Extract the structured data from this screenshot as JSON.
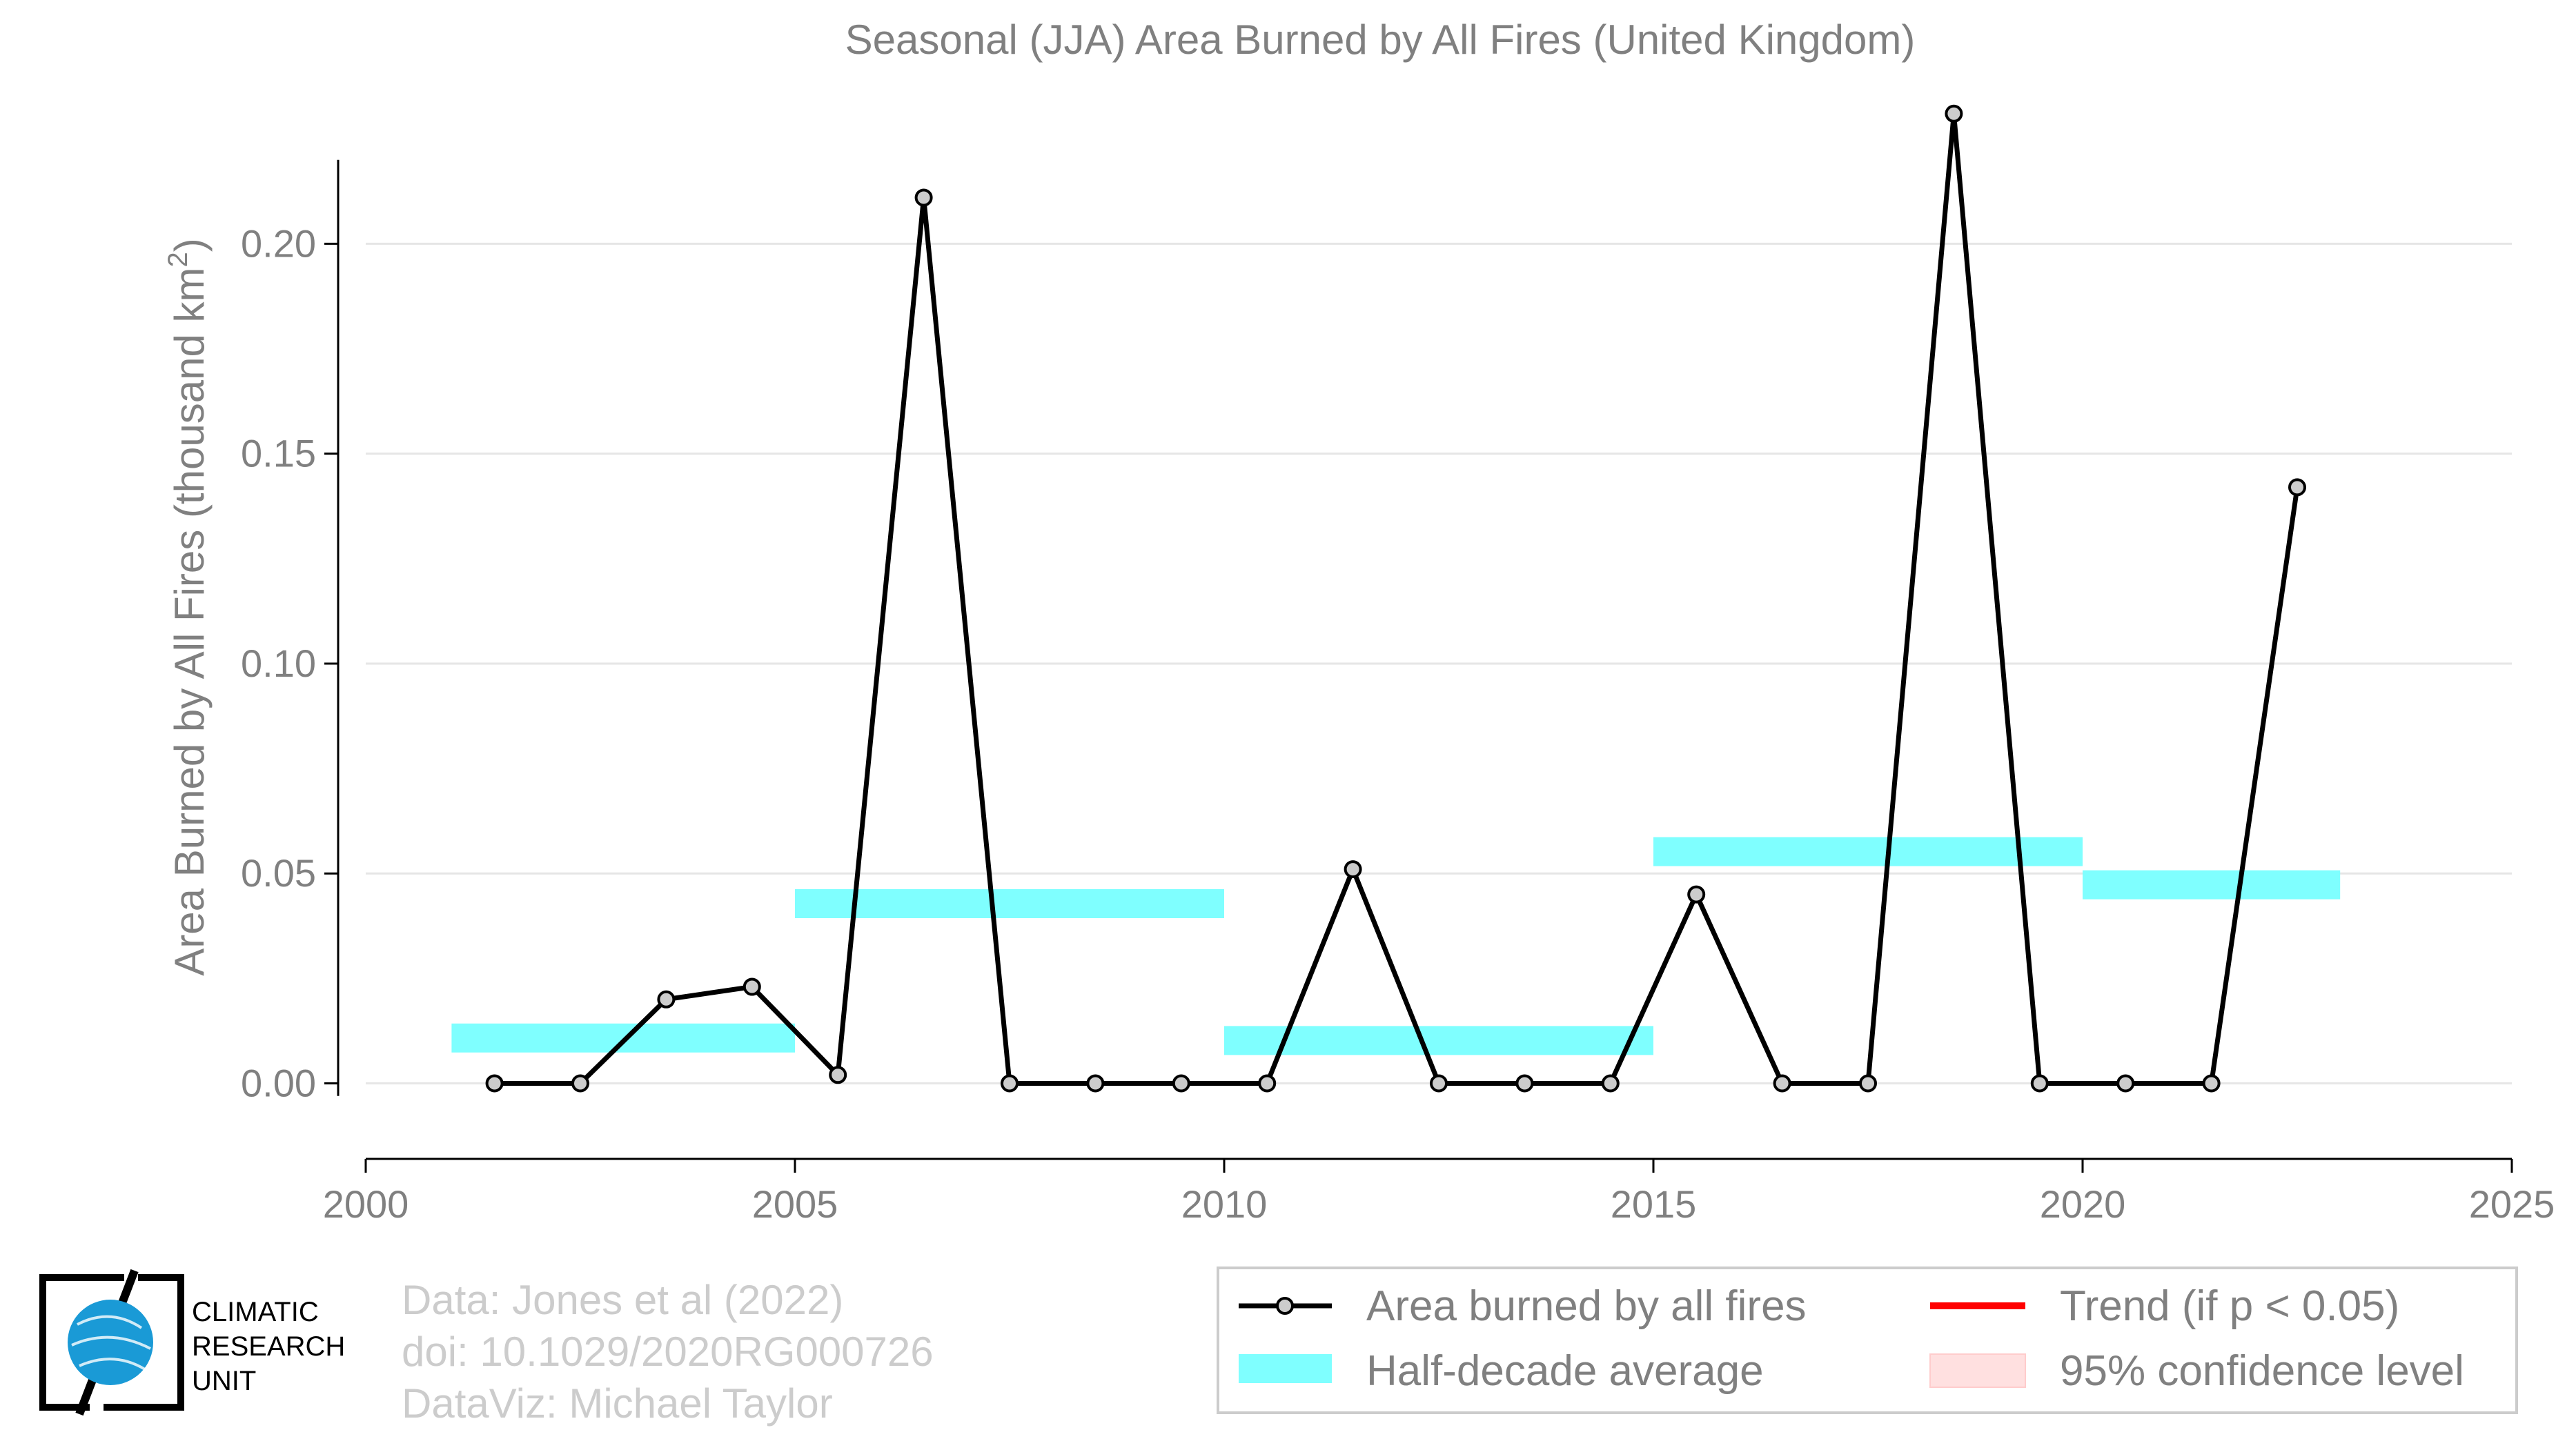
{
  "chart_data": {
    "type": "line",
    "title": "Seasonal (JJA) Area Burned by All Fires (United Kingdom)",
    "ylabel": "Area Burned by All Fires (thousand km",
    "ylabel_sup": "2",
    "ylabel_end": ")",
    "xlabel": "",
    "xlim": [
      2000,
      2025
    ],
    "ylim": [
      -0.018,
      0.24
    ],
    "xticks": [
      "2000",
      "2005",
      "2010",
      "2015",
      "2020",
      "2025"
    ],
    "yticks": [
      "0.00",
      "0.05",
      "0.10",
      "0.15",
      "0.20"
    ],
    "grid": "horizontal",
    "series": [
      {
        "name": "Area burned by all fires",
        "color": "#000000",
        "x": [
          2001.5,
          2002.5,
          2003.5,
          2004.5,
          2005.5,
          2006.5,
          2007.5,
          2008.5,
          2009.5,
          2010.5,
          2011.5,
          2012.5,
          2013.5,
          2014.5,
          2015.5,
          2016.5,
          2017.5,
          2018.5,
          2019.5,
          2020.5,
          2021.5,
          2022.5
        ],
        "y": [
          0.0,
          0.0,
          0.02,
          0.023,
          0.002,
          0.211,
          0.0,
          0.0,
          0.0,
          0.0,
          0.051,
          0.0,
          0.0,
          0.0,
          0.045,
          0.0,
          0.0,
          0.231,
          0.0,
          0.0,
          0.0,
          0.142
        ]
      }
    ],
    "half_decade_average": {
      "name": "Half-decade average",
      "color": "#7fffff",
      "segments": [
        {
          "x0": 2001,
          "x1": 2005,
          "y": 0.0108
        },
        {
          "x0": 2005,
          "x1": 2010,
          "y": 0.0428
        },
        {
          "x0": 2010,
          "x1": 2015,
          "y": 0.0102
        },
        {
          "x0": 2015,
          "x1": 2020,
          "y": 0.0552
        },
        {
          "x0": 2020,
          "x1": 2023,
          "y": 0.0473
        }
      ]
    },
    "legend": {
      "placement": "bottom-right",
      "items": [
        {
          "label": "Area burned by all fires",
          "kind": "line-marker",
          "color": "#000000"
        },
        {
          "label": "Trend (if p < 0.05)",
          "kind": "line",
          "color": "#ff0000"
        },
        {
          "label": "Half-decade average",
          "kind": "bar",
          "color": "#7fffff"
        },
        {
          "label": "95% confidence level",
          "kind": "patch",
          "color": "#ffe0e0"
        }
      ]
    }
  },
  "credits": [
    "Data: Jones et al (2022)",
    "doi: 10.1029/2020RG000726",
    "DataViz: Michael Taylor"
  ],
  "logo": {
    "lines": [
      "CLIMATIC",
      "RESEARCH",
      "UNIT"
    ],
    "color": "#1a9ad6"
  }
}
